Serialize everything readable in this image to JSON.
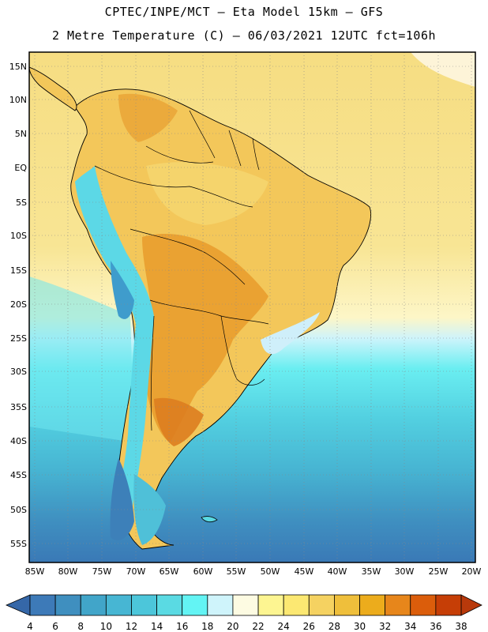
{
  "title": {
    "line1": "CPTEC/INPE/MCT –  Eta Model 15km – GFS",
    "line2": "2 Metre Temperature (C) – 06/03/2021 12UTC fct=106h"
  },
  "axes": {
    "lat_labels": [
      "15N",
      "10N",
      "5N",
      "EQ",
      "5S",
      "10S",
      "15S",
      "20S",
      "25S",
      "30S",
      "35S",
      "40S",
      "45S",
      "50S",
      "55S"
    ],
    "lon_labels": [
      "85W",
      "80W",
      "75W",
      "70W",
      "65W",
      "60W",
      "55W",
      "50W",
      "45W",
      "40W",
      "35W",
      "30W",
      "25W",
      "20W"
    ]
  },
  "colorbar": {
    "labels": [
      "4",
      "6",
      "8",
      "10",
      "12",
      "14",
      "16",
      "18",
      "20",
      "22",
      "24",
      "26",
      "28",
      "30",
      "32",
      "34",
      "36",
      "38"
    ],
    "colors": [
      "#3d7ab8",
      "#3f8fbf",
      "#41a5c9",
      "#47b6d3",
      "#4cc6da",
      "#5adae3",
      "#63f4f4",
      "#cff4fb",
      "#fdfbe2",
      "#fdf591",
      "#fce872",
      "#f5d261",
      "#efbf3b",
      "#ecac1c",
      "#e7861b",
      "#db5d0b",
      "#c63e06"
    ],
    "low_color": "#3567a8",
    "high_color": "#b8390b"
  }
}
